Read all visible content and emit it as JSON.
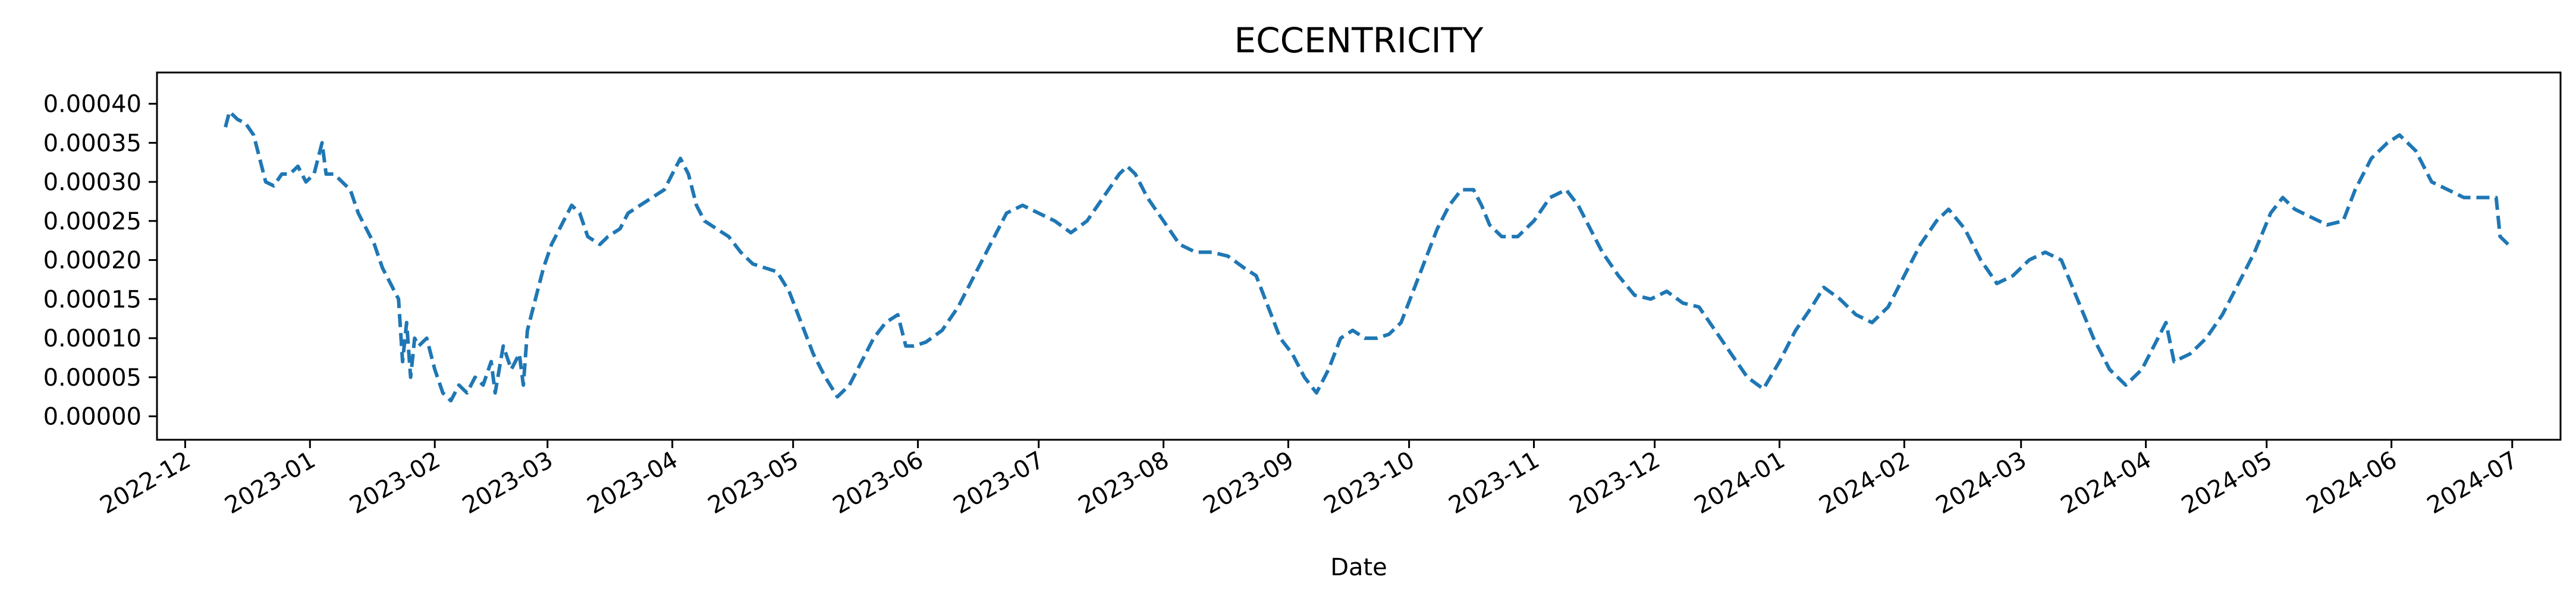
{
  "chart_data": {
    "type": "line",
    "title": "ECCENTRICITY",
    "xlabel": "Date",
    "ylabel": "",
    "grid": false,
    "legend": "none",
    "line_style": "dashed",
    "colors": {
      "series": "#1f77b4",
      "axes": "#000000",
      "background": "#ffffff"
    },
    "xlim": [
      "2022-11-24",
      "2024-07-13"
    ],
    "ylim": [
      -3e-05,
      0.00044
    ],
    "y_ticks": [
      0.0,
      5e-05,
      0.0001,
      0.00015,
      0.0002,
      0.00025,
      0.0003,
      0.00035,
      0.0004
    ],
    "y_tick_labels": [
      "0.00000",
      "0.00005",
      "0.00010",
      "0.00015",
      "0.00020",
      "0.00025",
      "0.00030",
      "0.00035",
      "0.00040"
    ],
    "x_ticks": [
      "2022-12-01",
      "2023-01-01",
      "2023-02-01",
      "2023-03-01",
      "2023-04-01",
      "2023-05-01",
      "2023-06-01",
      "2023-07-01",
      "2023-08-01",
      "2023-09-01",
      "2023-10-01",
      "2023-11-01",
      "2023-12-01",
      "2024-01-01",
      "2024-02-01",
      "2024-03-01",
      "2024-04-01",
      "2024-05-01",
      "2024-06-01",
      "2024-07-01"
    ],
    "x_tick_labels": [
      "2022-12",
      "2023-01",
      "2023-02",
      "2023-03",
      "2023-04",
      "2023-05",
      "2023-06",
      "2023-07",
      "2023-08",
      "2023-09",
      "2023-10",
      "2023-11",
      "2023-12",
      "2024-01",
      "2024-02",
      "2024-03",
      "2024-04",
      "2024-05",
      "2024-06",
      "2024-07"
    ],
    "series": [
      {
        "x": [
          "2022-12-11",
          "2022-12-12",
          "2022-12-13",
          "2022-12-14",
          "2022-12-16",
          "2022-12-18",
          "2022-12-19",
          "2022-12-21",
          "2022-12-23",
          "2022-12-25",
          "2022-12-27",
          "2022-12-29",
          "2022-12-31",
          "2023-01-02",
          "2023-01-04",
          "2023-01-05",
          "2023-01-07",
          "2023-01-09",
          "2023-01-11",
          "2023-01-13",
          "2023-01-15",
          "2023-01-17",
          "2023-01-19",
          "2023-01-21",
          "2023-01-23",
          "2023-01-24",
          "2023-01-25",
          "2023-01-26",
          "2023-01-27",
          "2023-01-28",
          "2023-01-30",
          "2023-02-01",
          "2023-02-03",
          "2023-02-05",
          "2023-02-07",
          "2023-02-09",
          "2023-02-11",
          "2023-02-13",
          "2023-02-15",
          "2023-02-16",
          "2023-02-18",
          "2023-02-20",
          "2023-02-22",
          "2023-02-23",
          "2023-02-24",
          "2023-02-26",
          "2023-02-28",
          "2023-03-02",
          "2023-03-05",
          "2023-03-07",
          "2023-03-09",
          "2023-03-11",
          "2023-03-14",
          "2023-03-16",
          "2023-03-19",
          "2023-03-21",
          "2023-03-24",
          "2023-03-27",
          "2023-03-30",
          "2023-04-01",
          "2023-04-03",
          "2023-04-05",
          "2023-04-07",
          "2023-04-09",
          "2023-04-12",
          "2023-04-15",
          "2023-04-18",
          "2023-04-21",
          "2023-04-24",
          "2023-04-27",
          "2023-04-30",
          "2023-05-03",
          "2023-05-06",
          "2023-05-09",
          "2023-05-12",
          "2023-05-15",
          "2023-05-18",
          "2023-05-21",
          "2023-05-24",
          "2023-05-27",
          "2023-05-29",
          "2023-05-31",
          "2023-06-03",
          "2023-06-07",
          "2023-06-11",
          "2023-06-15",
          "2023-06-19",
          "2023-06-23",
          "2023-06-27",
          "2023-07-01",
          "2023-07-05",
          "2023-07-09",
          "2023-07-13",
          "2023-07-17",
          "2023-07-21",
          "2023-07-23",
          "2023-07-25",
          "2023-07-28",
          "2023-08-01",
          "2023-08-05",
          "2023-08-09",
          "2023-08-13",
          "2023-08-17",
          "2023-08-21",
          "2023-08-24",
          "2023-08-27",
          "2023-08-30",
          "2023-09-02",
          "2023-09-05",
          "2023-09-08",
          "2023-09-11",
          "2023-09-14",
          "2023-09-17",
          "2023-09-20",
          "2023-09-23",
          "2023-09-26",
          "2023-09-29",
          "2023-10-02",
          "2023-10-05",
          "2023-10-08",
          "2023-10-11",
          "2023-10-14",
          "2023-10-17",
          "2023-10-19",
          "2023-10-21",
          "2023-10-24",
          "2023-10-28",
          "2023-11-01",
          "2023-11-05",
          "2023-11-09",
          "2023-11-12",
          "2023-11-15",
          "2023-11-18",
          "2023-11-22",
          "2023-11-26",
          "2023-11-30",
          "2023-12-04",
          "2023-12-08",
          "2023-12-12",
          "2023-12-16",
          "2023-12-20",
          "2023-12-24",
          "2023-12-28",
          "2024-01-01",
          "2024-01-05",
          "2024-01-09",
          "2024-01-12",
          "2024-01-16",
          "2024-01-20",
          "2024-01-24",
          "2024-01-28",
          "2024-02-01",
          "2024-02-05",
          "2024-02-09",
          "2024-02-12",
          "2024-02-16",
          "2024-02-20",
          "2024-02-24",
          "2024-02-28",
          "2024-03-03",
          "2024-03-07",
          "2024-03-11",
          "2024-03-15",
          "2024-03-19",
          "2024-03-23",
          "2024-03-27",
          "2024-03-31",
          "2024-04-03",
          "2024-04-06",
          "2024-04-08",
          "2024-04-12",
          "2024-04-16",
          "2024-04-20",
          "2024-04-24",
          "2024-04-28",
          "2024-05-02",
          "2024-05-05",
          "2024-05-08",
          "2024-05-12",
          "2024-05-16",
          "2024-05-20",
          "2024-05-23",
          "2024-05-27",
          "2024-05-31",
          "2024-06-03",
          "2024-06-07",
          "2024-06-11",
          "2024-06-15",
          "2024-06-19",
          "2024-06-23",
          "2024-06-27",
          "2024-06-28",
          "2024-06-30"
        ],
        "y": [
          0.00037,
          0.00039,
          0.000385,
          0.00038,
          0.000375,
          0.00036,
          0.00034,
          0.0003,
          0.000295,
          0.00031,
          0.00031,
          0.00032,
          0.0003,
          0.00031,
          0.00035,
          0.00031,
          0.00031,
          0.0003,
          0.00029,
          0.00026,
          0.00024,
          0.00022,
          0.00019,
          0.00017,
          0.00015,
          7e-05,
          0.00012,
          5e-05,
          0.0001,
          9e-05,
          0.0001,
          6e-05,
          3e-05,
          2e-05,
          4e-05,
          3e-05,
          5e-05,
          4e-05,
          7e-05,
          3e-05,
          9e-05,
          6e-05,
          8e-05,
          4e-05,
          0.00011,
          0.00015,
          0.00019,
          0.00022,
          0.00025,
          0.00027,
          0.00026,
          0.00023,
          0.00022,
          0.00023,
          0.00024,
          0.00026,
          0.00027,
          0.00028,
          0.00029,
          0.00031,
          0.00033,
          0.00031,
          0.00027,
          0.00025,
          0.00024,
          0.00023,
          0.00021,
          0.000195,
          0.00019,
          0.000185,
          0.00016,
          0.00012,
          8e-05,
          5e-05,
          2.5e-05,
          4e-05,
          7e-05,
          0.0001,
          0.00012,
          0.00013,
          9e-05,
          9e-05,
          9.5e-05,
          0.00011,
          0.00014,
          0.00018,
          0.00022,
          0.00026,
          0.00027,
          0.00026,
          0.00025,
          0.000235,
          0.00025,
          0.00028,
          0.00031,
          0.00032,
          0.00031,
          0.00028,
          0.00025,
          0.00022,
          0.00021,
          0.00021,
          0.000205,
          0.00019,
          0.00018,
          0.00014,
          0.0001,
          8e-05,
          5e-05,
          3e-05,
          6e-05,
          0.0001,
          0.00011,
          0.0001,
          0.0001,
          0.000105,
          0.00012,
          0.00016,
          0.0002,
          0.00024,
          0.00027,
          0.00029,
          0.00029,
          0.00027,
          0.000245,
          0.00023,
          0.00023,
          0.00025,
          0.00028,
          0.00029,
          0.00027,
          0.00024,
          0.00021,
          0.00018,
          0.000155,
          0.00015,
          0.00016,
          0.000145,
          0.00014,
          0.00011,
          8e-05,
          5e-05,
          3.5e-05,
          7e-05,
          0.00011,
          0.00014,
          0.000165,
          0.00015,
          0.00013,
          0.00012,
          0.00014,
          0.00018,
          0.00022,
          0.00025,
          0.000265,
          0.00024,
          0.0002,
          0.00017,
          0.00018,
          0.0002,
          0.00021,
          0.0002,
          0.00015,
          0.0001,
          6e-05,
          4e-05,
          6e-05,
          9e-05,
          0.00012,
          7e-05,
          8e-05,
          0.0001,
          0.00013,
          0.00017,
          0.00021,
          0.00026,
          0.00028,
          0.000265,
          0.000255,
          0.000245,
          0.00025,
          0.00029,
          0.00033,
          0.00035,
          0.00036,
          0.00034,
          0.0003,
          0.00029,
          0.00028,
          0.00028,
          0.00028,
          0.00023,
          0.00022
        ]
      }
    ]
  }
}
